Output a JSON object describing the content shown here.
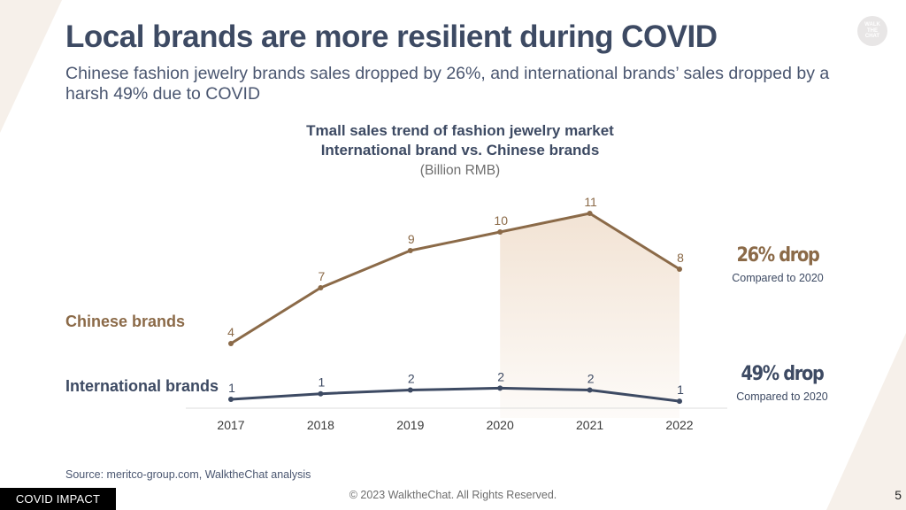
{
  "slide": {
    "title": "Local brands are more resilient during COVID",
    "subtitle": "Chinese fashion jewelry brands sales dropped by 26%, and international brands’ sales dropped by a harsh 49% due to COVID",
    "logo_text": "WALK\nTHE\nCHAT",
    "source": "Source: meritco-group.com, WalktheChat analysis",
    "badge": "COVID IMPACT",
    "copyright": "© 2023 WalktheChat. All Rights Reserved.",
    "page_number": "5"
  },
  "annotations": {
    "chinese_drop": "26% drop",
    "chinese_compare": "Compared to 2020",
    "international_drop": "49% drop",
    "international_compare": "Compared to 2020"
  },
  "colors": {
    "chinese": "#8b6a48",
    "international": "#3d4a63",
    "highlight_fill": "#f2e3d4"
  },
  "chart_data": {
    "type": "line",
    "title": "Tmall sales trend of fashion jewelry market",
    "subtitle": "International brand vs. Chinese brands",
    "unit": "(Billion RMB)",
    "categories": [
      "2017",
      "2018",
      "2019",
      "2020",
      "2021",
      "2022"
    ],
    "series": [
      {
        "name": "Chinese brands",
        "values": [
          4,
          7,
          9,
          10,
          11,
          8
        ],
        "labels": [
          "4",
          "7",
          "9",
          "10",
          "11",
          "8"
        ]
      },
      {
        "name": "International brands",
        "values": [
          1,
          1.3,
          1.5,
          1.6,
          1.5,
          0.9
        ],
        "labels": [
          "1",
          "1",
          "2",
          "2",
          "2",
          "1"
        ]
      }
    ],
    "highlight_range": [
      "2020",
      "2022"
    ],
    "grid": false,
    "legend": "left"
  }
}
